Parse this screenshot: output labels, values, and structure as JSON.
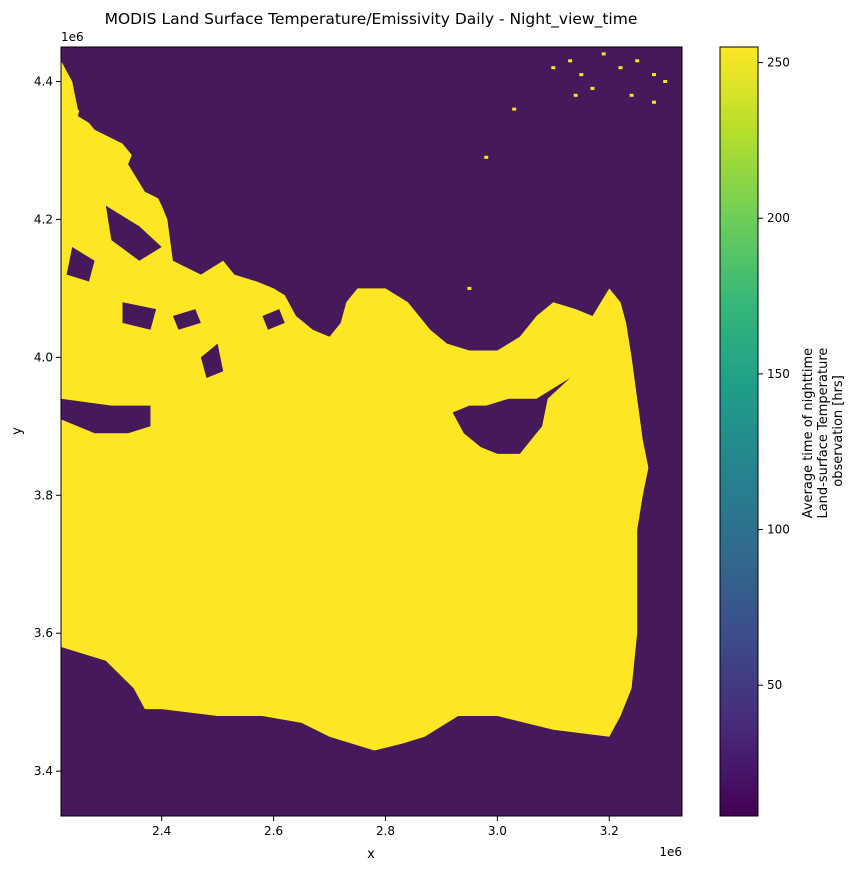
{
  "chart_data": {
    "type": "heatmap",
    "title": "MODIS Land Surface Temperature/Emissivity Daily - Night_view_time",
    "xlabel": "x",
    "ylabel": "y",
    "x_offset_label": "1e6",
    "y_offset_label": "1e6",
    "xlim": [
      2.22,
      3.33
    ],
    "ylim": [
      3.335,
      4.45
    ],
    "xticks": [
      {
        "value": 2.4,
        "label": "2.4"
      },
      {
        "value": 2.6,
        "label": "2.6"
      },
      {
        "value": 2.8,
        "label": "2.8"
      },
      {
        "value": 3.0,
        "label": "3.0"
      },
      {
        "value": 3.2,
        "label": "3.2"
      }
    ],
    "yticks": [
      {
        "value": 3.4,
        "label": "3.4"
      },
      {
        "value": 3.6,
        "label": "3.6"
      },
      {
        "value": 3.8,
        "label": "3.8"
      },
      {
        "value": 4.0,
        "label": "4.0"
      },
      {
        "value": 4.2,
        "label": "4.2"
      },
      {
        "value": 4.4,
        "label": "4.4"
      }
    ],
    "colormap": "viridis",
    "colormap_stops": [
      "#440154",
      "#482878",
      "#3e4989",
      "#31688e",
      "#26828e",
      "#1f9e89",
      "#35b779",
      "#6ece58",
      "#b5de2b",
      "#fde725"
    ],
    "colorbar": {
      "label_lines": [
        "Average time of nighttime",
        "Land-surface Temperature",
        "observation [hrs]"
      ],
      "range": [
        8,
        255
      ],
      "ticks": [
        {
          "value": 50,
          "label": "50"
        },
        {
          "value": 100,
          "label": "100"
        },
        {
          "value": 150,
          "label": "150"
        },
        {
          "value": 200,
          "label": "200"
        },
        {
          "value": 250,
          "label": "250"
        }
      ]
    },
    "fill_colors": {
      "land": "#46195b",
      "sea": "#fde725"
    },
    "sea_polygon": [
      [
        2.22,
        4.43
      ],
      [
        2.24,
        4.4
      ],
      [
        2.25,
        4.36
      ],
      [
        2.28,
        4.33
      ],
      [
        2.33,
        4.31
      ],
      [
        2.37,
        4.27
      ],
      [
        2.4,
        4.22
      ],
      [
        2.41,
        4.2
      ],
      [
        2.42,
        4.14
      ],
      [
        2.47,
        4.12
      ],
      [
        2.51,
        4.14
      ],
      [
        2.53,
        4.12
      ],
      [
        2.57,
        4.11
      ],
      [
        2.6,
        4.1
      ],
      [
        2.62,
        4.09
      ],
      [
        2.64,
        4.06
      ],
      [
        2.67,
        4.04
      ],
      [
        2.7,
        4.03
      ],
      [
        2.72,
        4.05
      ],
      [
        2.73,
        4.08
      ],
      [
        2.75,
        4.1
      ],
      [
        2.8,
        4.1
      ],
      [
        2.84,
        4.08
      ],
      [
        2.88,
        4.04
      ],
      [
        2.91,
        4.02
      ],
      [
        2.95,
        4.01
      ],
      [
        3.0,
        4.01
      ],
      [
        3.04,
        4.03
      ],
      [
        3.07,
        4.06
      ],
      [
        3.1,
        4.08
      ],
      [
        3.14,
        4.07
      ],
      [
        3.17,
        4.06
      ],
      [
        3.2,
        4.1
      ],
      [
        3.22,
        4.08
      ],
      [
        3.23,
        4.05
      ],
      [
        3.24,
        4.0
      ],
      [
        3.25,
        3.94
      ],
      [
        3.26,
        3.88
      ],
      [
        3.27,
        3.84
      ],
      [
        3.26,
        3.8
      ],
      [
        3.25,
        3.75
      ],
      [
        3.25,
        3.6
      ],
      [
        3.24,
        3.52
      ],
      [
        3.22,
        3.48
      ],
      [
        3.2,
        3.45
      ],
      [
        3.1,
        3.46
      ],
      [
        3.0,
        3.48
      ],
      [
        2.93,
        3.48
      ],
      [
        2.87,
        3.45
      ],
      [
        2.83,
        3.44
      ],
      [
        2.78,
        3.43
      ],
      [
        2.7,
        3.45
      ],
      [
        2.65,
        3.47
      ],
      [
        2.58,
        3.48
      ],
      [
        2.5,
        3.48
      ],
      [
        2.4,
        3.49
      ],
      [
        2.37,
        3.49
      ],
      [
        2.35,
        3.52
      ],
      [
        2.3,
        3.56
      ],
      [
        2.22,
        3.58
      ]
    ],
    "land_polygons": [
      [
        [
          2.92,
          3.92
        ],
        [
          2.95,
          3.93
        ],
        [
          2.98,
          3.93
        ],
        [
          3.02,
          3.94
        ],
        [
          3.07,
          3.94
        ],
        [
          3.11,
          3.96
        ],
        [
          3.13,
          3.97
        ],
        [
          3.09,
          3.94
        ],
        [
          3.08,
          3.9
        ],
        [
          3.04,
          3.86
        ],
        [
          3.0,
          3.86
        ],
        [
          2.97,
          3.87
        ],
        [
          2.94,
          3.89
        ]
      ],
      [
        [
          2.22,
          3.94
        ],
        [
          2.31,
          3.93
        ],
        [
          2.38,
          3.93
        ],
        [
          2.38,
          3.9
        ],
        [
          2.34,
          3.89
        ],
        [
          2.28,
          3.89
        ],
        [
          2.22,
          3.91
        ]
      ],
      [
        [
          2.35,
          4.3
        ],
        [
          2.41,
          4.28
        ],
        [
          2.45,
          4.25
        ],
        [
          2.42,
          4.22
        ],
        [
          2.37,
          4.24
        ],
        [
          2.34,
          4.28
        ]
      ],
      [
        [
          2.3,
          4.22
        ],
        [
          2.36,
          4.19
        ],
        [
          2.4,
          4.16
        ],
        [
          2.36,
          4.14
        ],
        [
          2.31,
          4.17
        ]
      ],
      [
        [
          2.24,
          4.16
        ],
        [
          2.28,
          4.14
        ],
        [
          2.27,
          4.11
        ],
        [
          2.23,
          4.12
        ]
      ],
      [
        [
          2.33,
          4.08
        ],
        [
          2.39,
          4.07
        ],
        [
          2.38,
          4.04
        ],
        [
          2.33,
          4.05
        ]
      ],
      [
        [
          2.47,
          4.0
        ],
        [
          2.5,
          4.02
        ],
        [
          2.51,
          3.98
        ],
        [
          2.48,
          3.97
        ]
      ],
      [
        [
          2.26,
          4.38
        ],
        [
          2.3,
          4.36
        ],
        [
          2.29,
          4.33
        ],
        [
          2.25,
          4.35
        ]
      ],
      [
        [
          2.42,
          4.06
        ],
        [
          2.46,
          4.07
        ],
        [
          2.47,
          4.05
        ],
        [
          2.43,
          4.04
        ]
      ],
      [
        [
          2.58,
          4.06
        ],
        [
          2.61,
          4.07
        ],
        [
          2.62,
          4.05
        ],
        [
          2.59,
          4.04
        ]
      ]
    ],
    "sea_specks": [
      [
        3.1,
        4.42
      ],
      [
        3.13,
        4.43
      ],
      [
        3.15,
        4.41
      ],
      [
        3.19,
        4.44
      ],
      [
        3.22,
        4.42
      ],
      [
        3.25,
        4.43
      ],
      [
        3.28,
        4.41
      ],
      [
        3.3,
        4.4
      ],
      [
        3.17,
        4.39
      ],
      [
        3.24,
        4.38
      ],
      [
        3.28,
        4.37
      ],
      [
        3.14,
        4.38
      ],
      [
        2.98,
        4.29
      ],
      [
        2.95,
        4.1
      ],
      [
        3.03,
        4.36
      ]
    ]
  }
}
